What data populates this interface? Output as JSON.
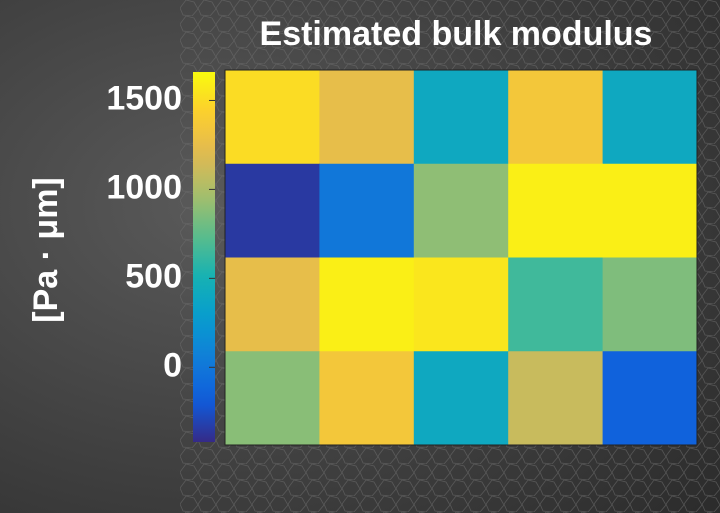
{
  "chart_data": {
    "type": "heatmap",
    "title": "Estimated bulk modulus",
    "colorbar_label": "[Pa · μm]",
    "zlim": [
      -420,
      1660
    ],
    "zticks": [
      0,
      500,
      1000,
      1500
    ],
    "colormap": "parula",
    "z": [
      [
        1500,
        1250,
        400,
        1350,
        400
      ],
      [
        -350,
        0,
        900,
        1600,
        1600
      ],
      [
        1250,
        1600,
        1550,
        650,
        850
      ],
      [
        880,
        1350,
        400,
        1100,
        -150
      ]
    ]
  }
}
